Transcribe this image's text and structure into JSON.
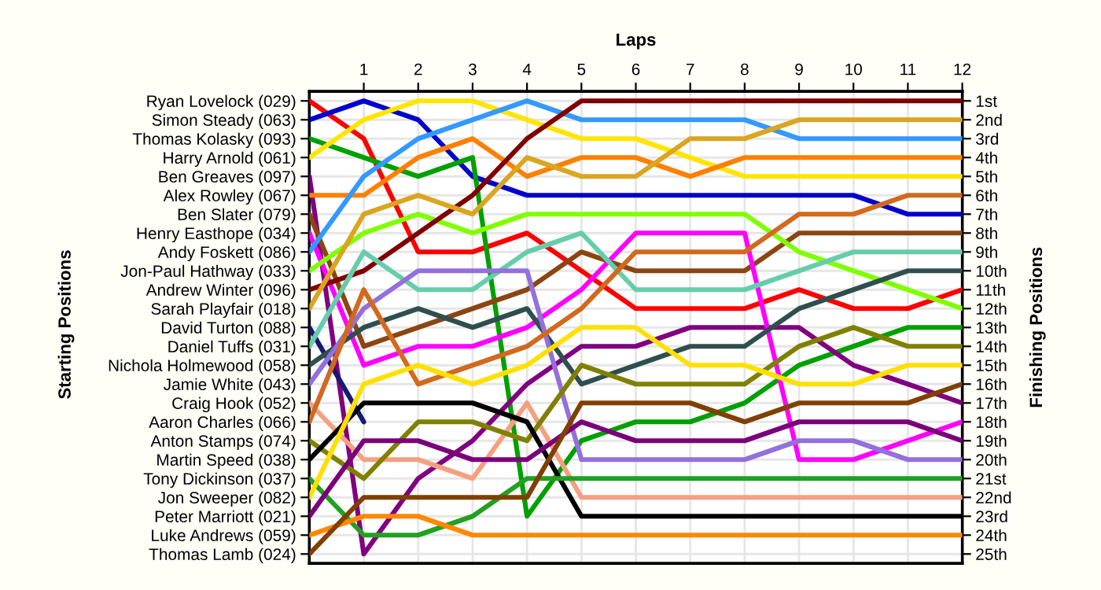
{
  "chart_data": {
    "type": "line",
    "xlabel": "Laps",
    "annotations": [
      "Starting Positions"
    ],
    "y2label": "Finishing Positions",
    "x": [
      0,
      1,
      2,
      3,
      4,
      5,
      6,
      7,
      8,
      9,
      10,
      11,
      12
    ],
    "xlim": [
      0,
      12
    ],
    "xticks": [
      1,
      2,
      3,
      4,
      5,
      6,
      7,
      8,
      9,
      10,
      11,
      12
    ],
    "y_categories": [
      "Ryan Lovelock (029)",
      "Simon Steady (063)",
      "Thomas Kolasky (093)",
      "Harry Arnold (061)",
      "Ben Greaves (097)",
      "Alex Rowley (067)",
      "Ben Slater (079)",
      "Henry Easthope (034)",
      "Andy Foskett (086)",
      "Jon-Paul Hathway (033)",
      "Andrew Winter (096)",
      "Sarah Playfair (018)",
      "David Turton (088)",
      "Daniel Tuffs (031)",
      "Nichola Holmewood (058)",
      "Jamie White (043)",
      "Craig Hook (052)",
      "Aaron Charles (066)",
      "Anton Stamps (074)",
      "Martin Speed (038)",
      "Tony Dickinson (037)",
      "Jon Sweeper (082)",
      "Peter Marriott (021)",
      "Luke Andrews (059)",
      "Thomas Lamb (024)"
    ],
    "y2lim": [
      25.5,
      0.5
    ],
    "y2ticks": [
      {
        "value": 1,
        "label": "1st"
      },
      {
        "value": 2,
        "label": "2nd"
      },
      {
        "value": 3,
        "label": "3rd"
      },
      {
        "value": 4,
        "label": "4th"
      },
      {
        "value": 5,
        "label": "5th"
      },
      {
        "value": 6,
        "label": "6th"
      },
      {
        "value": 7,
        "label": "7th"
      },
      {
        "value": 8,
        "label": "8th"
      },
      {
        "value": 9,
        "label": "9th"
      },
      {
        "value": 10,
        "label": "10th"
      },
      {
        "value": 11,
        "label": "11th"
      },
      {
        "value": 12,
        "label": "12th"
      },
      {
        "value": 13,
        "label": "13th"
      },
      {
        "value": 14,
        "label": "14th"
      },
      {
        "value": 15,
        "label": "15th"
      },
      {
        "value": 16,
        "label": "16th"
      },
      {
        "value": 17,
        "label": "17th"
      },
      {
        "value": 18,
        "label": "18th"
      },
      {
        "value": 19,
        "label": "19th"
      },
      {
        "value": 20,
        "label": "20th"
      },
      {
        "value": 21,
        "label": "21st"
      },
      {
        "value": 22,
        "label": "22nd"
      },
      {
        "value": 23,
        "label": "23rd"
      },
      {
        "value": 24,
        "label": "24th"
      },
      {
        "value": 25,
        "label": "25th"
      }
    ],
    "grid": true,
    "marker": "none",
    "line_style": "solid",
    "series": [
      {
        "axis": "y2",
        "color": "#ff0000",
        "values": [
          1,
          3,
          9,
          9,
          8,
          10,
          12,
          12,
          12,
          11,
          12,
          12,
          11
        ]
      },
      {
        "axis": "y2",
        "color": "#0000cd",
        "values": [
          2,
          1,
          2,
          5,
          6,
          6,
          6,
          6,
          6,
          6,
          6,
          7,
          7
        ]
      },
      {
        "axis": "y2",
        "color": "#00a000",
        "values": [
          3,
          4,
          5,
          4,
          23,
          19,
          18,
          18,
          17,
          15,
          14,
          13,
          13
        ]
      },
      {
        "axis": "y2",
        "color": "#ffe500",
        "values": [
          4,
          2,
          1,
          1,
          2,
          3,
          3,
          4,
          5,
          5,
          5,
          5,
          5
        ]
      },
      {
        "axis": "y2",
        "color": "#800080",
        "values": [
          5,
          25,
          21,
          19,
          16,
          14,
          14,
          13,
          13,
          13,
          15,
          16,
          17
        ]
      },
      {
        "axis": "y2",
        "color": "#ff8000",
        "values": [
          6,
          6,
          4,
          3,
          5,
          4,
          4,
          5,
          4,
          4,
          4,
          4,
          4
        ]
      },
      {
        "axis": "y2",
        "color": "#8b4513",
        "values": [
          7,
          14,
          13,
          12,
          11,
          9,
          10,
          10,
          10,
          8,
          8,
          8,
          8
        ]
      },
      {
        "axis": "y2",
        "color": "#ff00ff",
        "values": [
          8,
          15,
          14,
          14,
          13,
          11,
          8,
          8,
          8,
          20,
          20,
          19,
          18
        ]
      },
      {
        "axis": "y2",
        "color": "#3399ff",
        "values": [
          9,
          5,
          3,
          2,
          1,
          2,
          2,
          2,
          2,
          3,
          3,
          3,
          3
        ]
      },
      {
        "axis": "y2",
        "color": "#80ff00",
        "values": [
          10,
          8,
          7,
          8,
          7,
          7,
          7,
          7,
          7,
          9,
          10,
          11,
          12
        ]
      },
      {
        "axis": "y2",
        "color": "#800000",
        "values": [
          11,
          10,
          8,
          6,
          3,
          1,
          1,
          1,
          1,
          1,
          1,
          1,
          1
        ]
      },
      {
        "axis": "y2",
        "color": "#daa520",
        "values": [
          12,
          7,
          6,
          7,
          4,
          5,
          5,
          3,
          3,
          2,
          2,
          2,
          2
        ]
      },
      {
        "axis": "y2",
        "color": "#191970",
        "values": [
          13,
          18,
          null,
          null,
          null,
          null,
          null,
          null,
          null,
          null,
          null,
          null,
          null
        ]
      },
      {
        "axis": "y2",
        "color": "#66cdaa",
        "values": [
          14,
          9,
          11,
          11,
          9,
          8,
          11,
          11,
          11,
          10,
          9,
          9,
          9
        ]
      },
      {
        "axis": "y2",
        "color": "#2f4f4f",
        "values": [
          15,
          13,
          12,
          13,
          12,
          16,
          15,
          14,
          14,
          12,
          11,
          10,
          10
        ]
      },
      {
        "axis": "y2",
        "color": "#9370db",
        "values": [
          16,
          12,
          10,
          10,
          10,
          20,
          20,
          20,
          20,
          19,
          19,
          20,
          20
        ]
      },
      {
        "axis": "y2",
        "color": "#f4a080",
        "values": [
          17,
          20,
          20,
          21,
          17,
          22,
          22,
          22,
          22,
          22,
          22,
          22,
          22
        ]
      },
      {
        "axis": "y2",
        "color": "#d2691e",
        "values": [
          18,
          11,
          16,
          15,
          14,
          12,
          9,
          9,
          9,
          7,
          7,
          6,
          6
        ]
      },
      {
        "axis": "y2",
        "color": "#808000",
        "values": [
          19,
          21,
          18,
          18,
          19,
          15,
          16,
          16,
          16,
          14,
          13,
          14,
          14
        ]
      },
      {
        "axis": "y2",
        "color": "#000000",
        "values": [
          20,
          17,
          17,
          17,
          18,
          23,
          23,
          23,
          23,
          23,
          23,
          23,
          23
        ]
      },
      {
        "axis": "y2",
        "color": "#22a022",
        "values": [
          21,
          24,
          24,
          23,
          21,
          21,
          21,
          21,
          21,
          21,
          21,
          21,
          21
        ]
      },
      {
        "axis": "y2",
        "color": "#ffe000",
        "values": [
          22,
          16,
          15,
          16,
          15,
          13,
          13,
          15,
          15,
          16,
          16,
          15,
          15
        ]
      },
      {
        "axis": "y2",
        "color": "#7a007a",
        "values": [
          23,
          19,
          19,
          20,
          20,
          18,
          19,
          19,
          19,
          18,
          18,
          18,
          19
        ]
      },
      {
        "axis": "y2",
        "color": "#ff8800",
        "values": [
          24,
          23,
          23,
          24,
          24,
          24,
          24,
          24,
          24,
          24,
          24,
          24,
          24
        ]
      },
      {
        "axis": "y2",
        "color": "#804000",
        "values": [
          25,
          22,
          22,
          22,
          22,
          17,
          17,
          17,
          18,
          17,
          17,
          17,
          16
        ]
      }
    ]
  }
}
